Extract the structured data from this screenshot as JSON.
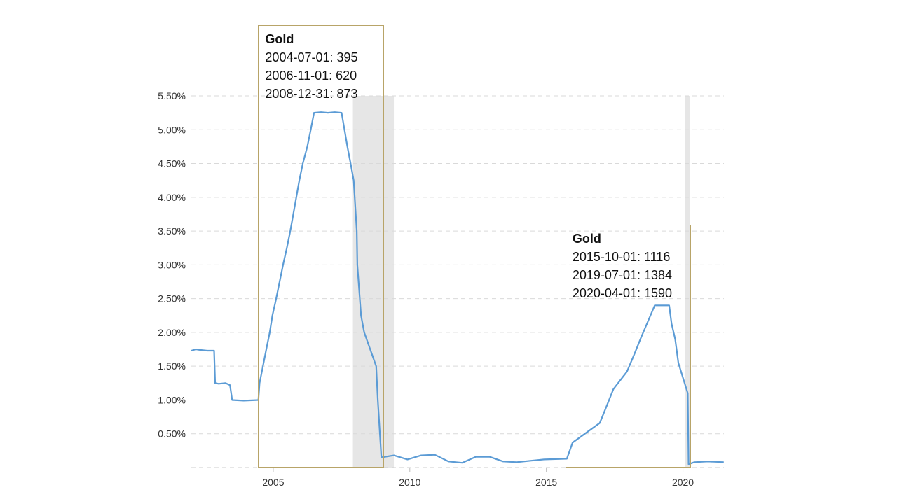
{
  "chart_data": {
    "type": "line",
    "title": "",
    "xlabel": "",
    "ylabel": "",
    "ylim": [
      0.0,
      5.5
    ],
    "xlim": [
      "2002-01-01",
      "2021-07-01"
    ],
    "grid": true,
    "y_ticks": [
      "0.50%",
      "1.00%",
      "1.50%",
      "2.00%",
      "2.50%",
      "3.00%",
      "3.50%",
      "4.00%",
      "4.50%",
      "5.00%",
      "5.50%"
    ],
    "y_tick_values": [
      0.5,
      1.0,
      1.5,
      2.0,
      2.5,
      3.0,
      3.5,
      4.0,
      4.5,
      5.0,
      5.5
    ],
    "x_ticks": [
      "2005",
      "2010",
      "2015",
      "2020"
    ],
    "recessions": [
      {
        "start": "2007-12-01",
        "end": "2009-06-01"
      },
      {
        "start": "2020-02-01",
        "end": "2020-04-01"
      }
    ],
    "series": [
      {
        "color": "#5b9bd5",
        "points": [
          [
            "2002-01-01",
            1.73
          ],
          [
            "2002-03-01",
            1.75
          ],
          [
            "2002-05-01",
            1.74
          ],
          [
            "2002-08-01",
            1.73
          ],
          [
            "2002-11-01",
            1.73
          ],
          [
            "2002-11-15",
            1.25
          ],
          [
            "2003-01-01",
            1.24
          ],
          [
            "2003-04-01",
            1.25
          ],
          [
            "2003-06-01",
            1.22
          ],
          [
            "2003-06-30",
            1.0
          ],
          [
            "2003-12-01",
            0.99
          ],
          [
            "2004-06-15",
            1.0
          ],
          [
            "2004-07-01",
            1.25
          ],
          [
            "2004-08-15",
            1.5
          ],
          [
            "2004-09-30",
            1.75
          ],
          [
            "2004-11-15",
            2.0
          ],
          [
            "2004-12-20",
            2.25
          ],
          [
            "2005-02-10",
            2.5
          ],
          [
            "2005-03-25",
            2.75
          ],
          [
            "2005-05-10",
            3.0
          ],
          [
            "2005-06-30",
            3.25
          ],
          [
            "2005-08-15",
            3.5
          ],
          [
            "2005-09-25",
            3.75
          ],
          [
            "2005-11-05",
            4.0
          ],
          [
            "2005-12-15",
            4.25
          ],
          [
            "2006-02-01",
            4.5
          ],
          [
            "2006-03-30",
            4.75
          ],
          [
            "2006-05-15",
            5.0
          ],
          [
            "2006-06-29",
            5.25
          ],
          [
            "2006-10-01",
            5.26
          ],
          [
            "2007-01-01",
            5.25
          ],
          [
            "2007-04-01",
            5.26
          ],
          [
            "2007-07-01",
            5.25
          ],
          [
            "2007-08-10",
            5.0
          ],
          [
            "2007-09-18",
            4.75
          ],
          [
            "2007-10-31",
            4.5
          ],
          [
            "2007-12-11",
            4.25
          ],
          [
            "2008-01-22",
            3.5
          ],
          [
            "2008-01-30",
            3.0
          ],
          [
            "2008-03-18",
            2.25
          ],
          [
            "2008-04-30",
            2.0
          ],
          [
            "2008-10-08",
            1.5
          ],
          [
            "2008-10-29",
            1.0
          ],
          [
            "2008-12-16",
            0.15
          ],
          [
            "2009-06-01",
            0.18
          ],
          [
            "2009-12-01",
            0.12
          ],
          [
            "2010-06-01",
            0.18
          ],
          [
            "2010-12-01",
            0.19
          ],
          [
            "2011-06-01",
            0.09
          ],
          [
            "2011-12-01",
            0.07
          ],
          [
            "2012-06-01",
            0.16
          ],
          [
            "2012-12-01",
            0.16
          ],
          [
            "2013-06-01",
            0.09
          ],
          [
            "2013-12-01",
            0.08
          ],
          [
            "2014-06-01",
            0.1
          ],
          [
            "2014-12-01",
            0.12
          ],
          [
            "2015-10-01",
            0.13
          ],
          [
            "2015-12-17",
            0.37
          ],
          [
            "2016-12-15",
            0.66
          ],
          [
            "2017-03-16",
            0.91
          ],
          [
            "2017-06-15",
            1.16
          ],
          [
            "2017-12-14",
            1.42
          ],
          [
            "2018-03-22",
            1.68
          ],
          [
            "2018-06-14",
            1.91
          ],
          [
            "2018-09-27",
            2.18
          ],
          [
            "2018-12-20",
            2.4
          ],
          [
            "2019-06-30",
            2.4
          ],
          [
            "2019-08-01",
            2.13
          ],
          [
            "2019-09-19",
            1.9
          ],
          [
            "2019-10-31",
            1.55
          ],
          [
            "2020-03-04",
            1.1
          ],
          [
            "2020-03-16",
            0.05
          ],
          [
            "2020-06-01",
            0.08
          ],
          [
            "2020-12-01",
            0.09
          ],
          [
            "2021-06-30",
            0.08
          ]
        ]
      }
    ],
    "annotations": [
      {
        "title": "Gold",
        "lines": [
          "2004-07-01: 395",
          "2006-11-01: 620",
          "2008-12-31: 873"
        ]
      },
      {
        "title": "Gold",
        "lines": [
          "2015-10-01: 1116",
          "2019-07-01: 1384",
          "2020-04-01: 1590"
        ]
      }
    ],
    "annotation_ranges": [
      {
        "start": "2004-07-01",
        "end": "2008-12-31"
      },
      {
        "start": "2015-10-01",
        "end": "2020-04-01"
      }
    ]
  }
}
